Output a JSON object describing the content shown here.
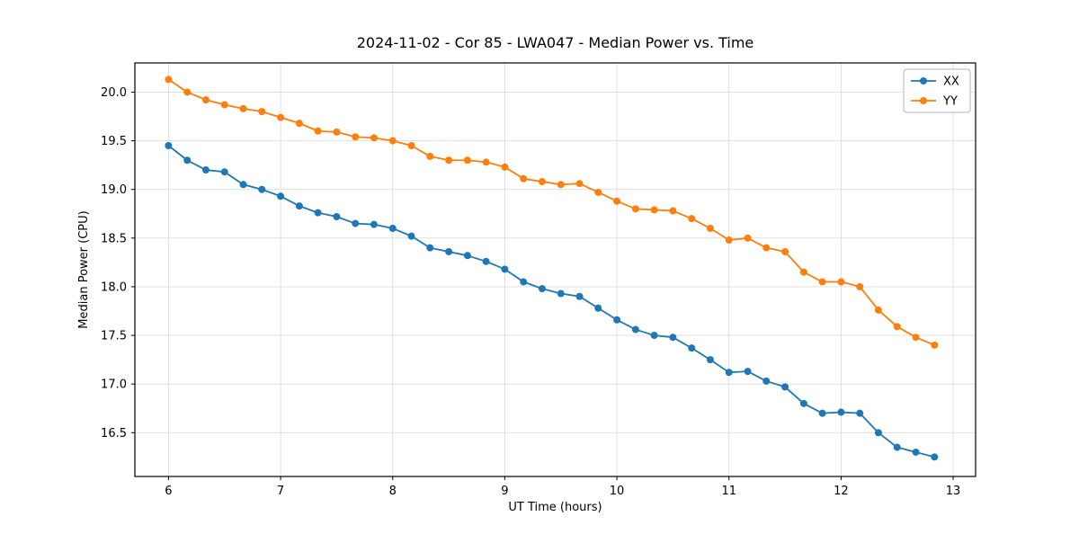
{
  "figure": {
    "title": "2024-11-02 - Cor 85 - LWA047 - Median Power vs. Time",
    "xlabel": "UT Time (hours)",
    "ylabel": "Median Power (CPU)"
  },
  "chart_data": {
    "type": "line",
    "title": "2024-11-02 - Cor 85 - LWA047 - Median Power vs. Time",
    "xlabel": "UT Time (hours)",
    "ylabel": "Median Power (CPU)",
    "xlim": [
      5.7,
      13.2
    ],
    "ylim": [
      16.05,
      20.3
    ],
    "xticks": [
      6,
      7,
      8,
      9,
      10,
      11,
      12,
      13
    ],
    "yticks": [
      16.5,
      17.0,
      17.5,
      18.0,
      18.5,
      19.0,
      19.5,
      20.0
    ],
    "grid": true,
    "legend_position": "upper right",
    "marker": "circle",
    "x": [
      6,
      6.167,
      6.333,
      6.5,
      6.667,
      6.833,
      7,
      7.167,
      7.333,
      7.5,
      7.667,
      7.833,
      8,
      8.167,
      8.333,
      8.5,
      8.667,
      8.833,
      9,
      9.167,
      9.333,
      9.5,
      9.667,
      9.833,
      10,
      10.167,
      10.333,
      10.5,
      10.667,
      10.833,
      11,
      11.167,
      11.333,
      11.5,
      11.667,
      11.833,
      12,
      12.167,
      12.333,
      12.5,
      12.667,
      12.833
    ],
    "series": [
      {
        "name": "XX",
        "color": "#1f77b4",
        "values": [
          19.45,
          19.3,
          19.2,
          19.18,
          19.05,
          19.0,
          18.93,
          18.83,
          18.76,
          18.72,
          18.65,
          18.64,
          18.6,
          18.52,
          18.4,
          18.36,
          18.32,
          18.26,
          18.18,
          18.05,
          17.98,
          17.93,
          17.9,
          17.78,
          17.66,
          17.56,
          17.5,
          17.48,
          17.37,
          17.25,
          17.12,
          17.13,
          17.03,
          16.97,
          16.8,
          16.7,
          16.71,
          16.7,
          16.5,
          16.35,
          16.3,
          16.25
        ]
      },
      {
        "name": "YY",
        "color": "#ff7f0e",
        "values": [
          20.13,
          20.0,
          19.92,
          19.87,
          19.83,
          19.8,
          19.74,
          19.68,
          19.6,
          19.59,
          19.54,
          19.53,
          19.5,
          19.45,
          19.34,
          19.3,
          19.3,
          19.28,
          19.23,
          19.11,
          19.08,
          19.05,
          19.06,
          18.97,
          18.88,
          18.8,
          18.79,
          18.78,
          18.7,
          18.6,
          18.48,
          18.5,
          18.4,
          18.36,
          18.15,
          18.05,
          18.05,
          18.0,
          17.76,
          17.59,
          17.48,
          17.4
        ]
      }
    ]
  },
  "colors": {
    "grid": "#dcdcdc",
    "spine": "#000000",
    "legend_border": "#b3b3b3"
  }
}
